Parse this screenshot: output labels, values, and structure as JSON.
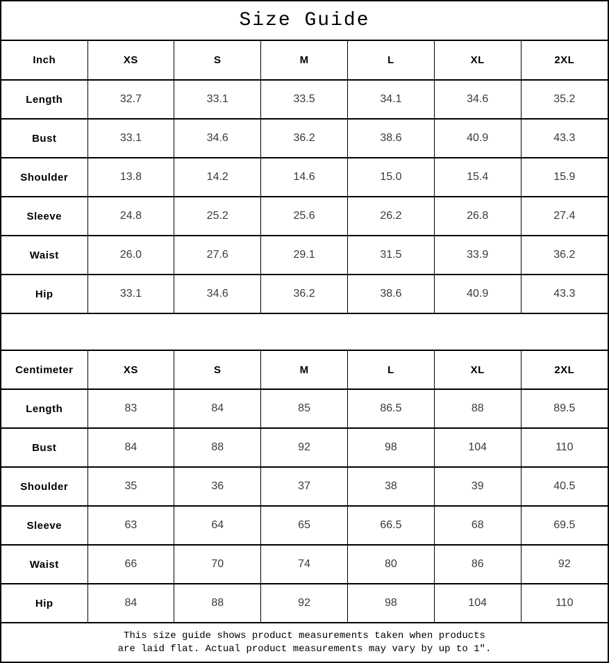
{
  "title": "Size Guide",
  "chart_data": [
    {
      "type": "table",
      "title": "Size Guide",
      "unit": "Inch",
      "columns": [
        "Inch",
        "XS",
        "S",
        "M",
        "L",
        "XL",
        "2XL"
      ],
      "rows": [
        [
          "Length",
          "32.7",
          "33.1",
          "33.5",
          "34.1",
          "34.6",
          "35.2"
        ],
        [
          "Bust",
          "33.1",
          "34.6",
          "36.2",
          "38.6",
          "40.9",
          "43.3"
        ],
        [
          "Shoulder",
          "13.8",
          "14.2",
          "14.6",
          "15.0",
          "15.4",
          "15.9"
        ],
        [
          "Sleeve",
          "24.8",
          "25.2",
          "25.6",
          "26.2",
          "26.8",
          "27.4"
        ],
        [
          "Waist",
          "26.0",
          "27.6",
          "29.1",
          "31.5",
          "33.9",
          "36.2"
        ],
        [
          "Hip",
          "33.1",
          "34.6",
          "36.2",
          "38.6",
          "40.9",
          "43.3"
        ]
      ]
    },
    {
      "type": "table",
      "title": "Size Guide",
      "unit": "Centimeter",
      "columns": [
        "Centimeter",
        "XS",
        "S",
        "M",
        "L",
        "XL",
        "2XL"
      ],
      "rows": [
        [
          "Length",
          "83",
          "84",
          "85",
          "86.5",
          "88",
          "89.5"
        ],
        [
          "Bust",
          "84",
          "88",
          "92",
          "98",
          "104",
          "110"
        ],
        [
          "Shoulder",
          "35",
          "36",
          "37",
          "38",
          "39",
          "40.5"
        ],
        [
          "Sleeve",
          "63",
          "64",
          "65",
          "66.5",
          "68",
          "69.5"
        ],
        [
          "Waist",
          "66",
          "70",
          "74",
          "80",
          "86",
          "92"
        ],
        [
          "Hip",
          "84",
          "88",
          "92",
          "98",
          "104",
          "110"
        ]
      ]
    }
  ],
  "footer": {
    "note_line1": "This size guide shows product measurements taken when products",
    "note_line2": "are laid flat. Actual product measurements may vary by up to 1″."
  }
}
